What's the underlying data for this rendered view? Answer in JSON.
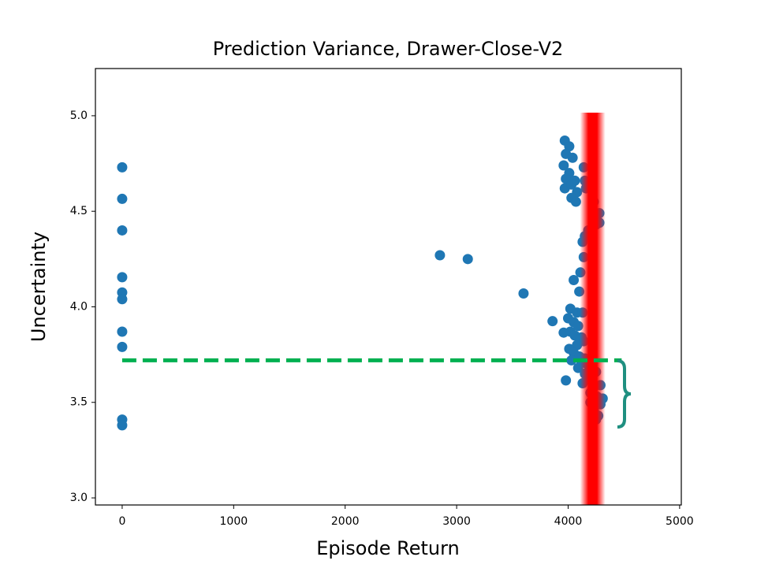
{
  "chart_data": {
    "type": "scatter",
    "title": "Prediction Variance, Drawer-Close-V2",
    "x_label": "Episode Return",
    "y_label": "Uncertainty",
    "color": "#1f77b4",
    "xlim": [
      -240,
      5015
    ],
    "ylim": [
      2.963,
      5.247
    ],
    "xticks": [
      0,
      1000,
      2000,
      3000,
      4000,
      5000
    ],
    "yticks": [
      {
        "value": 3,
        "label": "3.0"
      },
      3.5,
      {
        "value": 4,
        "label": "4.0"
      },
      4.5,
      {
        "value": 5,
        "label": "5.0"
      }
    ],
    "x": [
      0,
      0,
      0,
      0,
      0,
      0,
      0,
      0,
      0,
      0,
      2850,
      3100,
      3600,
      3860,
      3960,
      3980,
      3970,
      4010,
      3980,
      4040,
      3960,
      4010,
      3980,
      4060,
      3970,
      4030,
      4080,
      4030,
      4070,
      4140,
      4150,
      4160,
      4230,
      4280,
      4280,
      4250,
      4180,
      4150,
      4130,
      4140,
      4110,
      4050,
      4100,
      4020,
      4080,
      4130,
      4000,
      4050,
      4090,
      4020,
      4060,
      4120,
      4140,
      4080,
      4010,
      4050,
      4100,
      4150,
      4030,
      4120,
      4170,
      4090,
      4200,
      4150,
      4250,
      4180,
      4130,
      4230,
      4290,
      4200,
      4260,
      4310,
      4200,
      4290,
      4230,
      4270,
      4250
    ],
    "y": [
      4.73,
      4.565,
      4.4,
      4.155,
      4.075,
      4.04,
      3.87,
      3.79,
      3.41,
      3.38,
      4.27,
      4.25,
      4.07,
      3.925,
      3.865,
      3.615,
      4.87,
      4.84,
      4.8,
      4.78,
      4.74,
      4.7,
      4.67,
      4.66,
      4.62,
      4.64,
      4.6,
      4.57,
      4.55,
      4.73,
      4.66,
      4.62,
      4.55,
      4.49,
      4.44,
      4.43,
      4.4,
      4.37,
      4.34,
      4.26,
      4.18,
      4.14,
      4.08,
      3.99,
      3.97,
      3.97,
      3.94,
      3.92,
      3.9,
      3.87,
      3.85,
      3.84,
      3.82,
      3.8,
      3.78,
      3.76,
      3.74,
      3.73,
      3.72,
      3.71,
      3.7,
      3.68,
      3.67,
      3.65,
      3.66,
      3.62,
      3.6,
      3.58,
      3.59,
      3.55,
      3.53,
      3.52,
      3.5,
      3.49,
      3.46,
      3.43,
      3.41
    ],
    "vline": {
      "x": 4220,
      "color": "#ff0000"
    },
    "hline": {
      "y": 3.72,
      "xmin": 0,
      "xmax": 4480,
      "color": "#00b050"
    }
  }
}
